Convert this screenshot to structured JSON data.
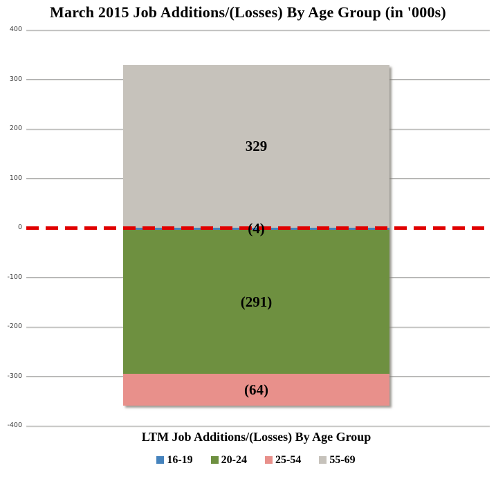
{
  "chart_data": {
    "type": "bar",
    "stacked": true,
    "title": "March 2015 Job Additions/(Losses) By Age Group (in '000s)",
    "xlabel": "LTM Job Additions/(Losses) By Age Group",
    "categories": [
      "LTM Job Additions/(Losses) By Age Group"
    ],
    "series": [
      {
        "name": "16-19",
        "value": -4,
        "data_label": "(4)",
        "color": "#4583BD"
      },
      {
        "name": "20-24",
        "value": -291,
        "data_label": "(291)",
        "color": "#6E9040"
      },
      {
        "name": "25-54",
        "value": -64,
        "data_label": "(64)",
        "color": "#E8908B"
      },
      {
        "name": "55-69",
        "value": 329,
        "data_label": "329",
        "color": "#C6C2BB"
      }
    ],
    "ylim": [
      -400,
      400
    ],
    "yticks": [
      400,
      300,
      200,
      100,
      0,
      -100,
      -200,
      -300,
      -400
    ],
    "grid": true,
    "legend_position": "bottom",
    "zero_line": {
      "style": "dashed",
      "color": "#E00000"
    },
    "colors": {
      "gridline": "#A3A3A3",
      "tick_text": "#404040",
      "background": "#FFFFFF"
    }
  }
}
